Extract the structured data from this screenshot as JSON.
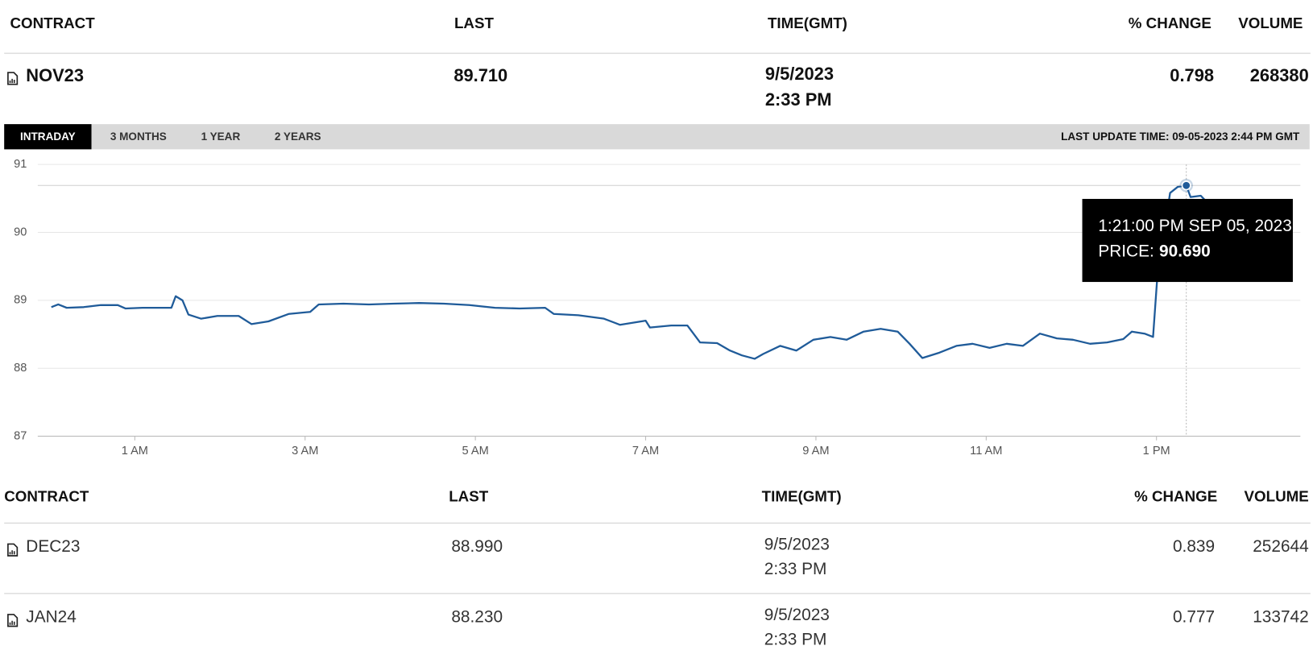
{
  "top_table": {
    "headers": [
      "CONTRACT",
      "LAST",
      "TIME(GMT)",
      "% CHANGE",
      "VOLUME"
    ],
    "row": [
      "NOV23",
      "89.710",
      "9/5/2023",
      "2:33 PM",
      "0.798",
      "268380"
    ]
  },
  "tabs": [
    "INTRADAY",
    "3 MONTHS",
    "1 YEAR",
    "2 YEARS"
  ],
  "last_update": "LAST UPDATE TIME: 09-05-2023 2:44 PM GMT",
  "chart_data": {
    "type": "line",
    "color": "#1f5b99",
    "x": [
      0.02,
      0.1,
      0.2,
      0.4,
      0.6,
      0.8,
      0.89,
      1.09,
      1.29,
      1.43,
      1.48,
      1.56,
      1.63,
      1.78,
      1.97,
      2.22,
      2.37,
      2.57,
      2.81,
      3.06,
      3.16,
      3.45,
      3.75,
      4.04,
      4.34,
      4.63,
      4.93,
      5.23,
      5.52,
      5.82,
      5.92,
      6.21,
      6.51,
      6.7,
      7.0,
      7.05,
      7.3,
      7.49,
      7.64,
      7.84,
      7.99,
      8.13,
      8.28,
      8.38,
      8.58,
      8.77,
      8.97,
      9.17,
      9.36,
      9.56,
      9.76,
      9.96,
      10.1,
      10.25,
      10.45,
      10.65,
      10.84,
      11.04,
      11.24,
      11.43,
      11.63,
      11.83,
      12.02,
      12.22,
      12.42,
      12.61,
      12.71,
      12.86,
      12.96,
      13.01,
      13.16,
      13.25,
      13.35,
      13.4,
      13.52,
      13.58
    ],
    "values": [
      88.9,
      88.94,
      88.89,
      88.9,
      88.93,
      88.93,
      88.88,
      88.89,
      88.89,
      88.89,
      89.06,
      89.0,
      88.79,
      88.73,
      88.77,
      88.77,
      88.65,
      88.69,
      88.8,
      88.83,
      88.94,
      88.95,
      88.94,
      88.95,
      88.96,
      88.95,
      88.93,
      88.89,
      88.88,
      88.89,
      88.8,
      88.78,
      88.73,
      88.64,
      88.7,
      88.6,
      88.63,
      88.63,
      88.38,
      88.37,
      88.26,
      88.19,
      88.14,
      88.21,
      88.33,
      88.26,
      88.42,
      88.46,
      88.42,
      88.54,
      88.58,
      88.54,
      88.36,
      88.15,
      88.23,
      88.33,
      88.36,
      88.3,
      88.36,
      88.33,
      88.51,
      88.44,
      88.42,
      88.36,
      88.38,
      88.43,
      88.54,
      88.51,
      88.46,
      89.35,
      90.58,
      90.67,
      90.69,
      90.52,
      90.54,
      90.46
    ],
    "xlim": [
      -0.14,
      14.69
    ],
    "xticks": [
      {
        "value": 1,
        "label": "1 AM"
      },
      {
        "value": 3,
        "label": "3 AM"
      },
      {
        "value": 5,
        "label": "5 AM"
      },
      {
        "value": 7,
        "label": "7 AM"
      },
      {
        "value": 9,
        "label": "9 AM"
      },
      {
        "value": 11,
        "label": "11 AM"
      },
      {
        "value": 13,
        "label": "1 PM"
      }
    ],
    "ylim": [
      87,
      91
    ],
    "yticks": [
      87,
      88,
      89,
      90,
      91
    ],
    "grid": true,
    "tooltip": {
      "time": "1:21:00 PM SEP 05, 2023",
      "price_label": "PRICE:",
      "price": {
        "value": 90.69,
        "label": "90.690"
      }
    }
  },
  "table": {
    "headers": [
      "CONTRACT",
      "LAST",
      "TIME(GMT)",
      "% CHANGE",
      "VOLUME"
    ],
    "rows": [
      [
        "DEC23",
        "88.990",
        "9/5/2023",
        "2:33 PM",
        "0.839",
        "252644"
      ],
      [
        "JAN24",
        "88.230",
        "9/5/2023",
        "2:33 PM",
        "0.777",
        "133742"
      ]
    ]
  }
}
